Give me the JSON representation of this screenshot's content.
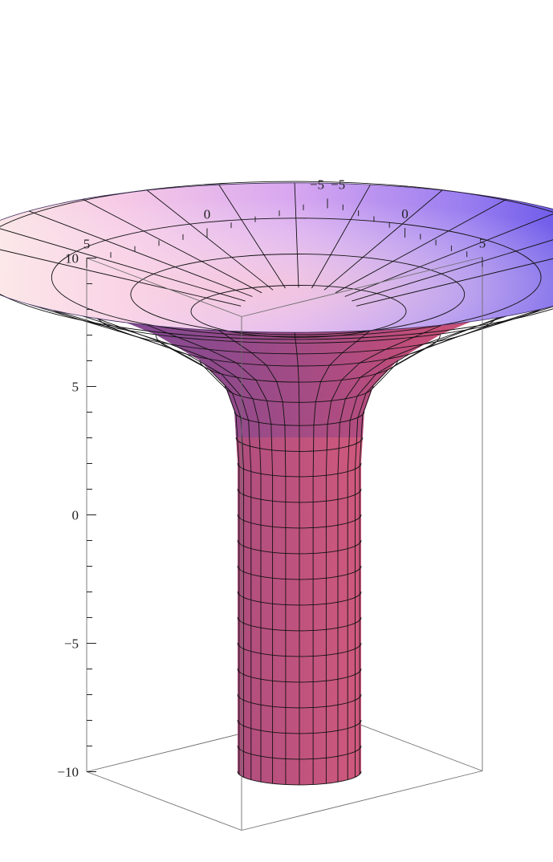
{
  "chart_data": {
    "type": "surface3d",
    "surface": "pseudosphere-funnel (surface of revolution)",
    "colors": {
      "rim_light": "#fde9dc",
      "rim_violet": "#c79bf2",
      "rim_blue": "#4f42e6",
      "body_dark": "#6c4ba6",
      "body_magenta": "#c2487c",
      "body_light": "#f6a586",
      "edge": "#6e6e6e"
    },
    "axes": {
      "x": {
        "range": [
          -5,
          5
        ],
        "ticks": [
          -5,
          0,
          5
        ],
        "tick_labels": [
          "−5",
          "0",
          "5"
        ]
      },
      "y": {
        "range": [
          -5,
          5
        ],
        "ticks": [
          -5,
          0,
          5
        ],
        "tick_labels": [
          "−5",
          "0",
          "5"
        ]
      },
      "z": {
        "range": [
          -10,
          10
        ],
        "ticks": [
          -10,
          -5,
          0,
          5,
          10
        ],
        "tick_labels": [
          "−10",
          "−5",
          "0",
          "5",
          "10"
        ]
      }
    },
    "surface_profile": {
      "description": "radius vs height",
      "z": [
        -10,
        -8,
        -6,
        -4,
        -2,
        0,
        2,
        4,
        5,
        6,
        7,
        8,
        9,
        10
      ],
      "radius": [
        1.0,
        1.0,
        1.0,
        1.0,
        1.0,
        1.0,
        1.0,
        1.05,
        1.2,
        1.6,
        2.3,
        3.3,
        4.4,
        5.5
      ]
    },
    "title": "",
    "xlabel": "",
    "ylabel": "",
    "zlabel": "",
    "grid": false,
    "legend": null
  }
}
